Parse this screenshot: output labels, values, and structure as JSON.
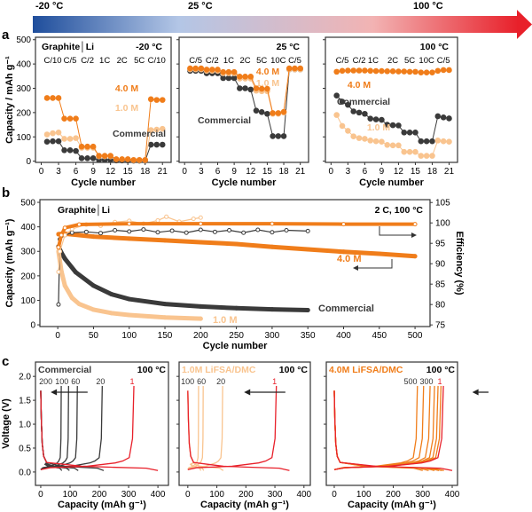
{
  "temperature_bar": {
    "labels": [
      "-20 °C",
      "25 °C",
      "100 °C"
    ],
    "colors": [
      "#1f4e9c",
      "#b3c6e6",
      "#f2b3b3",
      "#e8202a"
    ]
  },
  "panel_labels": [
    "a",
    "b",
    "c"
  ],
  "colors": {
    "c40": "#f07d1a",
    "c10": "#f9c48f",
    "commercial": "#3a3a3a",
    "first": "#e8202a"
  },
  "chart_data": [
    {
      "id": "a1",
      "type": "scatter",
      "panel": "a",
      "title": "-20 °C",
      "cell_label": "Graphite│Li",
      "xlabel": "Cycle number",
      "ylabel": "Capacity / mAh g⁻¹",
      "xlim": [
        -1,
        22.5
      ],
      "ylim": [
        -5,
        510
      ],
      "xticks": [
        0,
        3,
        6,
        9,
        12,
        15,
        18,
        21
      ],
      "yticks": [
        0,
        100,
        200,
        300,
        400,
        500
      ],
      "rate_labels": [
        {
          "text": "C/10",
          "x": 2
        },
        {
          "text": "C/5",
          "x": 5
        },
        {
          "text": "C/2",
          "x": 8
        },
        {
          "text": "1C",
          "x": 11
        },
        {
          "text": "2C",
          "x": 14
        },
        {
          "text": "5C",
          "x": 17
        },
        {
          "text": "C/10",
          "x": 20
        }
      ],
      "series": [
        {
          "name": "Commercial",
          "color": "#3a3a3a",
          "values": [
            80,
            82,
            82,
            45,
            45,
            42,
            12,
            12,
            12,
            5,
            5,
            5,
            3,
            3,
            3,
            2,
            2,
            2,
            68,
            68,
            68
          ]
        },
        {
          "name": "1.0 M",
          "color": "#f9c48f",
          "values": [
            110,
            115,
            118,
            92,
            92,
            95,
            55,
            55,
            55,
            20,
            20,
            20,
            8,
            8,
            8,
            4,
            4,
            4,
            128,
            130,
            133
          ]
        },
        {
          "name": "4.0 M",
          "color": "#f07d1a",
          "values": [
            260,
            260,
            260,
            175,
            175,
            175,
            60,
            60,
            60,
            22,
            22,
            22,
            8,
            8,
            8,
            5,
            5,
            5,
            255,
            252,
            252
          ]
        }
      ]
    },
    {
      "id": "a2",
      "type": "scatter",
      "panel": "a",
      "title": "25 °C",
      "xlabel": "Cycle number",
      "xlim": [
        -1,
        22.5
      ],
      "ylim": [
        -5,
        510
      ],
      "xticks": [
        0,
        3,
        6,
        9,
        12,
        15,
        18,
        21
      ],
      "yticks": [
        0,
        100,
        200,
        300,
        400,
        500
      ],
      "rate_labels": [
        {
          "text": "C/5",
          "x": 2
        },
        {
          "text": "C/2",
          "x": 5
        },
        {
          "text": "1C",
          "x": 8
        },
        {
          "text": "2C",
          "x": 11
        },
        {
          "text": "5C",
          "x": 14
        },
        {
          "text": "10C",
          "x": 17
        },
        {
          "text": "C/5",
          "x": 20
        }
      ],
      "series": [
        {
          "name": "Commercial",
          "color": "#3a3a3a",
          "values": [
            372,
            372,
            372,
            362,
            362,
            362,
            342,
            342,
            342,
            300,
            300,
            295,
            208,
            202,
            195,
            103,
            103,
            103,
            378,
            378,
            378
          ]
        },
        {
          "name": "1.0 M",
          "color": "#f9c48f",
          "values": [
            378,
            378,
            378,
            372,
            372,
            372,
            362,
            362,
            362,
            340,
            340,
            340,
            290,
            288,
            288,
            195,
            195,
            200,
            378,
            378,
            378
          ]
        },
        {
          "name": "4.0 M",
          "color": "#f07d1a",
          "values": [
            382,
            382,
            382,
            377,
            377,
            377,
            367,
            367,
            367,
            348,
            348,
            348,
            300,
            298,
            298,
            198,
            198,
            203,
            382,
            382,
            382
          ]
        }
      ]
    },
    {
      "id": "a3",
      "type": "scatter",
      "panel": "a",
      "title": "100 °C",
      "xlabel": "Cycle number",
      "xlim": [
        -1,
        22.5
      ],
      "ylim": [
        -5,
        510
      ],
      "xticks": [
        0,
        3,
        6,
        9,
        12,
        15,
        18,
        21
      ],
      "yticks": [
        0,
        100,
        200,
        300,
        400,
        500
      ],
      "rate_labels": [
        {
          "text": "C/5",
          "x": 2
        },
        {
          "text": "C/2",
          "x": 5
        },
        {
          "text": "1C",
          "x": 7.5
        },
        {
          "text": "2C",
          "x": 11
        },
        {
          "text": "5C",
          "x": 14
        },
        {
          "text": "10C",
          "x": 17
        },
        {
          "text": "C/5",
          "x": 20
        }
      ],
      "series": [
        {
          "name": "Commercial",
          "color": "#3a3a3a",
          "values": [
            270,
            245,
            232,
            205,
            200,
            195,
            175,
            172,
            170,
            150,
            148,
            147,
            118,
            118,
            118,
            82,
            82,
            82,
            185,
            180,
            176
          ]
        },
        {
          "name": "1.0 M",
          "color": "#f9c48f",
          "values": [
            190,
            145,
            125,
            102,
            95,
            92,
            85,
            82,
            80,
            67,
            65,
            65,
            38,
            38,
            38,
            22,
            22,
            22,
            85,
            82,
            80
          ]
        },
        {
          "name": "4.0 M",
          "color": "#f07d1a",
          "values": [
            368,
            372,
            373,
            373,
            373,
            373,
            372,
            371,
            371,
            370,
            370,
            369,
            369,
            368,
            368,
            365,
            365,
            365,
            372,
            375,
            375
          ]
        }
      ]
    },
    {
      "id": "b",
      "type": "scatter",
      "panel": "b",
      "title": "2 C, 100 °C",
      "cell_label": "Graphite│Li",
      "xlabel": "Cycle number",
      "ylabel": "Capacity (mAh g⁻¹)",
      "y2label": "Efficiency (%)",
      "xlim": [
        -25,
        521
      ],
      "ylim": [
        -7,
        511
      ],
      "y2lim": [
        74.6,
        105.7
      ],
      "xticks": [
        0,
        50,
        100,
        150,
        200,
        250,
        300,
        350,
        400,
        450,
        500
      ],
      "yticks": [
        0,
        100,
        200,
        300,
        400,
        500
      ],
      "y2ticks": [
        75,
        80,
        85,
        90,
        95,
        100,
        105
      ],
      "capacity_series": [
        {
          "name": "Commercial",
          "color": "#3a3a3a",
          "points": [
            [
              1,
              320
            ],
            [
              5,
              295
            ],
            [
              10,
              270
            ],
            [
              25,
              215
            ],
            [
              50,
              160
            ],
            [
              75,
              125
            ],
            [
              100,
              105
            ],
            [
              150,
              85
            ],
            [
              200,
              75
            ],
            [
              250,
              68
            ],
            [
              300,
              63
            ],
            [
              350,
              60
            ]
          ]
        },
        {
          "name": "1.0 M",
          "color": "#f9c48f",
          "points": [
            [
              1,
              300
            ],
            [
              5,
              220
            ],
            [
              10,
              160
            ],
            [
              20,
              110
            ],
            [
              30,
              85
            ],
            [
              50,
              62
            ],
            [
              75,
              48
            ],
            [
              100,
              40
            ],
            [
              150,
              30
            ],
            [
              200,
              25
            ]
          ]
        },
        {
          "name": "4.0 M",
          "color": "#f07d1a",
          "points": [
            [
              1,
              370
            ],
            [
              10,
              372
            ],
            [
              50,
              360
            ],
            [
              100,
              352
            ],
            [
              150,
              345
            ],
            [
              200,
              337
            ],
            [
              250,
              330
            ],
            [
              300,
              318
            ],
            [
              350,
              308
            ],
            [
              400,
              298
            ],
            [
              450,
              290
            ],
            [
              500,
              280
            ]
          ]
        }
      ],
      "efficiency_series": [
        {
          "name": "Commercial",
          "color": "#3a3a3a",
          "points": [
            [
              1,
              80
            ],
            [
              3,
              96
            ],
            [
              10,
              97
            ],
            [
              20,
              97.6
            ],
            [
              40,
              97.8
            ],
            [
              60,
              97.5
            ],
            [
              80,
              98.2
            ],
            [
              100,
              97.9
            ],
            [
              120,
              98.4
            ],
            [
              140,
              97.7
            ],
            [
              160,
              98.1
            ],
            [
              180,
              97.6
            ],
            [
              200,
              98.3
            ],
            [
              220,
              97.8
            ],
            [
              240,
              98.2
            ],
            [
              260,
              97.6
            ],
            [
              280,
              98.3
            ],
            [
              300,
              97.7
            ],
            [
              320,
              98.2
            ],
            [
              350,
              98
            ]
          ]
        },
        {
          "name": "1.0 M",
          "color": "#f9c48f",
          "points": [
            [
              1,
              88
            ],
            [
              3,
              93
            ],
            [
              10,
              97
            ],
            [
              20,
              98.5
            ],
            [
              40,
              99.6
            ],
            [
              60,
              99.3
            ],
            [
              80,
              100.2
            ],
            [
              100,
              100.5
            ],
            [
              120,
              99.8
            ],
            [
              140,
              100.6
            ],
            [
              152,
              101.5
            ],
            [
              170,
              100.3
            ],
            [
              190,
              101
            ],
            [
              200,
              101.3
            ]
          ]
        },
        {
          "name": "4.0 M",
          "color": "#f07d1a",
          "points": [
            [
              1,
              94
            ],
            [
              5,
              97
            ],
            [
              10,
              98.8
            ],
            [
              30,
              99.6
            ],
            [
              100,
              99.8
            ],
            [
              200,
              99.8
            ],
            [
              300,
              99.8
            ],
            [
              400,
              99.7
            ],
            [
              500,
              99.7
            ]
          ]
        }
      ],
      "labels": {
        "c40": "4.0 M",
        "c10": "1.0 M",
        "commercial": "Commercial"
      }
    },
    {
      "id": "c1",
      "type": "line",
      "panel": "c",
      "title": "Commercial",
      "temp": "100 °C",
      "xlabel": "Capacity (mAh g⁻¹)",
      "ylabel": "Voltage (V)",
      "xlim": [
        -18,
        436
      ],
      "ylim": [
        -0.28,
        2.3
      ],
      "xticks": [
        0,
        100,
        200,
        300,
        400
      ],
      "yticks": [
        0.0,
        0.5,
        1.0,
        1.5,
        2.0
      ],
      "curves": [
        {
          "cycle": "1",
          "discharge": 400,
          "charge": 318,
          "color": "#e8202a",
          "label": true
        },
        {
          "cycle": "20",
          "discharge": 215,
          "charge": 210,
          "color": "#3a3a3a",
          "label": true
        },
        {
          "cycle": "60",
          "discharge": 128,
          "charge": 125,
          "color": "#3a3a3a",
          "label": true
        },
        {
          "cycle": "100",
          "discharge": 98,
          "charge": 95,
          "color": "#3a3a3a",
          "label": true
        },
        {
          "cycle": "200",
          "discharge": 72,
          "charge": 70,
          "color": "#3a3a3a",
          "label": true
        }
      ]
    },
    {
      "id": "c2",
      "type": "line",
      "panel": "c",
      "title": "1.0M LiFSA/DMC",
      "temp": "100 °C",
      "xlabel": "Capacity (mAh g⁻¹)",
      "xlim": [
        -30,
        422
      ],
      "ylim": [
        -0.28,
        2.3
      ],
      "xticks": [
        0,
        100,
        200,
        300,
        400
      ],
      "yticks": [
        0.0,
        0.5,
        1.0,
        1.5,
        2.0
      ],
      "curves": [
        {
          "cycle": "1",
          "discharge": 350,
          "charge": 305,
          "color": "#e8202a",
          "label": true
        },
        {
          "cycle": "20",
          "discharge": 122,
          "charge": 120,
          "color": "#f9c48f",
          "label": true
        },
        {
          "cycle": "60",
          "discharge": 55,
          "charge": 53,
          "color": "#f9c48f",
          "label": true
        },
        {
          "cycle": "100",
          "discharge": 45,
          "charge": 37,
          "color": "#f9c48f",
          "label": true
        }
      ]
    },
    {
      "id": "c3",
      "type": "line",
      "panel": "c",
      "title": "4.0M LiFSA/DMC",
      "temp": "100 °C",
      "xlabel": "Capacity (mAh g⁻¹)",
      "xlim": [
        -27,
        418
      ],
      "ylim": [
        -0.28,
        2.3
      ],
      "xticks": [
        0,
        100,
        200,
        300,
        400
      ],
      "yticks": [
        0.0,
        0.5,
        1.0,
        1.5,
        2.0
      ],
      "curves": [
        {
          "cycle": "1",
          "discharge": 400,
          "charge": 370,
          "color": "#e8202a",
          "label": true
        },
        {
          "cycle": "",
          "discharge": 372,
          "charge": 362,
          "color": "#f07d1a",
          "label": false
        },
        {
          "cycle": "",
          "discharge": 365,
          "charge": 352,
          "color": "#f07d1a",
          "label": false
        },
        {
          "cycle": "",
          "discharge": 355,
          "charge": 340,
          "color": "#f07d1a",
          "label": false
        },
        {
          "cycle": "300",
          "discharge": 340,
          "charge": 325,
          "color": "#f07d1a",
          "label": true
        },
        {
          "cycle": "",
          "discharge": 320,
          "charge": 303,
          "color": "#f07d1a",
          "label": false
        },
        {
          "cycle": "500",
          "discharge": 300,
          "charge": 282,
          "color": "#f07d1a",
          "label": true
        }
      ]
    }
  ]
}
